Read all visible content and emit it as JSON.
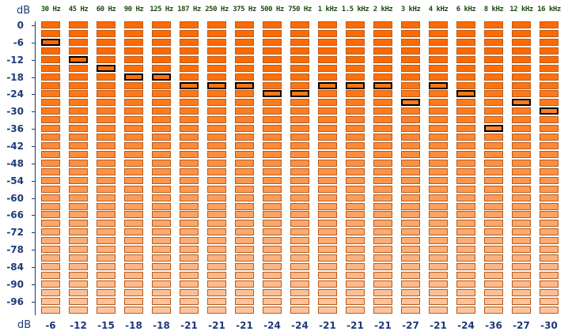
{
  "unit_top": "dB",
  "unit_bottom": "dB",
  "bands": [
    {
      "label": "30 Hz",
      "peak": "-6"
    },
    {
      "label": "45 Hz",
      "peak": "-12"
    },
    {
      "label": "60 Hz",
      "peak": "-15"
    },
    {
      "label": "90 Hz",
      "peak": "-18"
    },
    {
      "label": "125 Hz",
      "peak": "-18"
    },
    {
      "label": "187 Hz",
      "peak": "-21"
    },
    {
      "label": "250 Hz",
      "peak": "-21"
    },
    {
      "label": "375 Hz",
      "peak": "-21"
    },
    {
      "label": "500 Hz",
      "peak": "-24"
    },
    {
      "label": "750 Hz",
      "peak": "-24"
    },
    {
      "label": "1 kHz",
      "peak": "-21"
    },
    {
      "label": "1.5 kHz",
      "peak": "-21"
    },
    {
      "label": "2 kHz",
      "peak": "-21"
    },
    {
      "label": "3 kHz",
      "peak": "-27"
    },
    {
      "label": "4 kHz",
      "peak": "-21"
    },
    {
      "label": "6 kHz",
      "peak": "-24"
    },
    {
      "label": "8 kHz",
      "peak": "-36"
    },
    {
      "label": "12 kHz",
      "peak": "-27"
    },
    {
      "label": "16 kHz",
      "peak": "-30"
    }
  ],
  "scale_ticks": [
    "0",
    "-6",
    "-12",
    "-18",
    "-24",
    "-30",
    "-36",
    "-42",
    "-48",
    "-54",
    "-60",
    "-66",
    "-72",
    "-78",
    "-84",
    "-90",
    "-96"
  ],
  "colors": {
    "cell_hot": "#ff6a00",
    "cell_cold": "#fdc8a4",
    "cell_border": "#b65c1e",
    "peak_border": "#000000",
    "text": "#1e3a78",
    "freq_text": "#1f4a12"
  }
}
